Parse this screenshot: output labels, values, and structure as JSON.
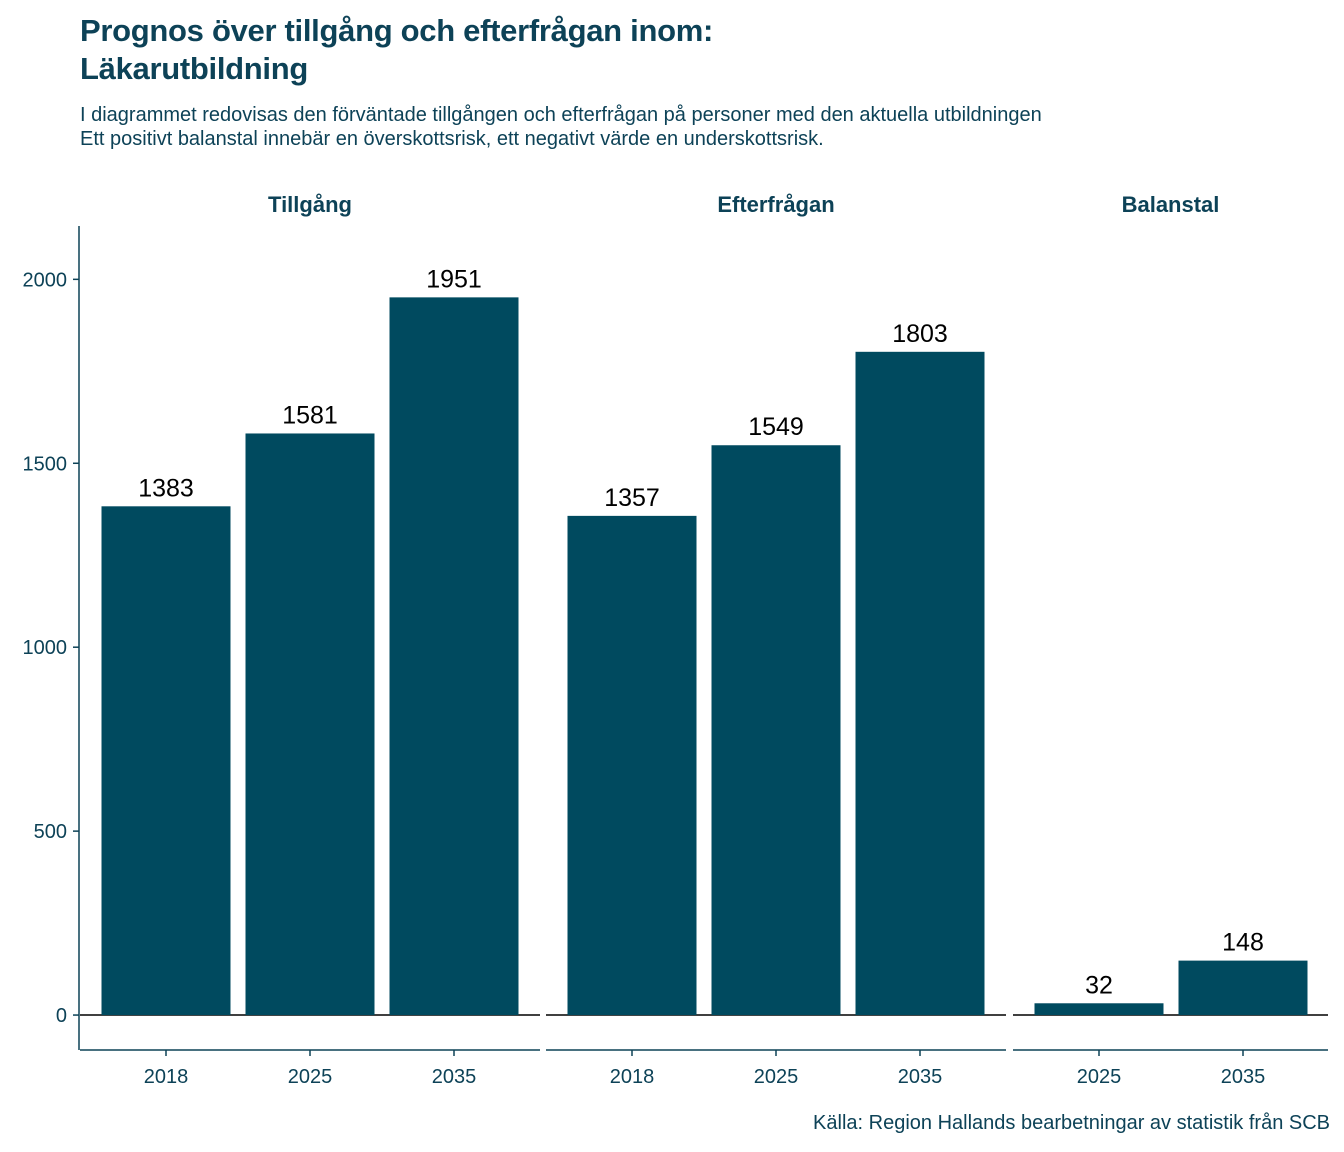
{
  "title_line1": "Prognos över tillgång och efterfrågan inom:",
  "title_line2": "Läkarutbildning",
  "subtitle_line1": "I diagrammet redovisas den förväntade tillgången och efterfrågan på personer med den aktuella utbildningen",
  "subtitle_line2": "Ett positivt balanstal innebär en överskottsrisk, ett negativt värde en underskottsrisk.",
  "caption": "Källa: Region Hallands bearbetningar av statistik från SCB",
  "colors": {
    "bar": "#004a5f",
    "text": "#0d4257"
  },
  "chart_data": {
    "type": "bar",
    "ylim": [
      -95,
      2145
    ],
    "y_ticks": [
      0,
      500,
      1000,
      1500,
      2000
    ],
    "grid": false,
    "facets": [
      {
        "name": "Tillgång",
        "categories": [
          "2018",
          "2025",
          "2035"
        ],
        "values": [
          1383,
          1581,
          1951
        ]
      },
      {
        "name": "Efterfrågan",
        "categories": [
          "2018",
          "2025",
          "2035"
        ],
        "values": [
          1357,
          1549,
          1803
        ]
      },
      {
        "name": "Balanstal",
        "categories": [
          "2025",
          "2035"
        ],
        "values": [
          32,
          148
        ]
      }
    ]
  }
}
